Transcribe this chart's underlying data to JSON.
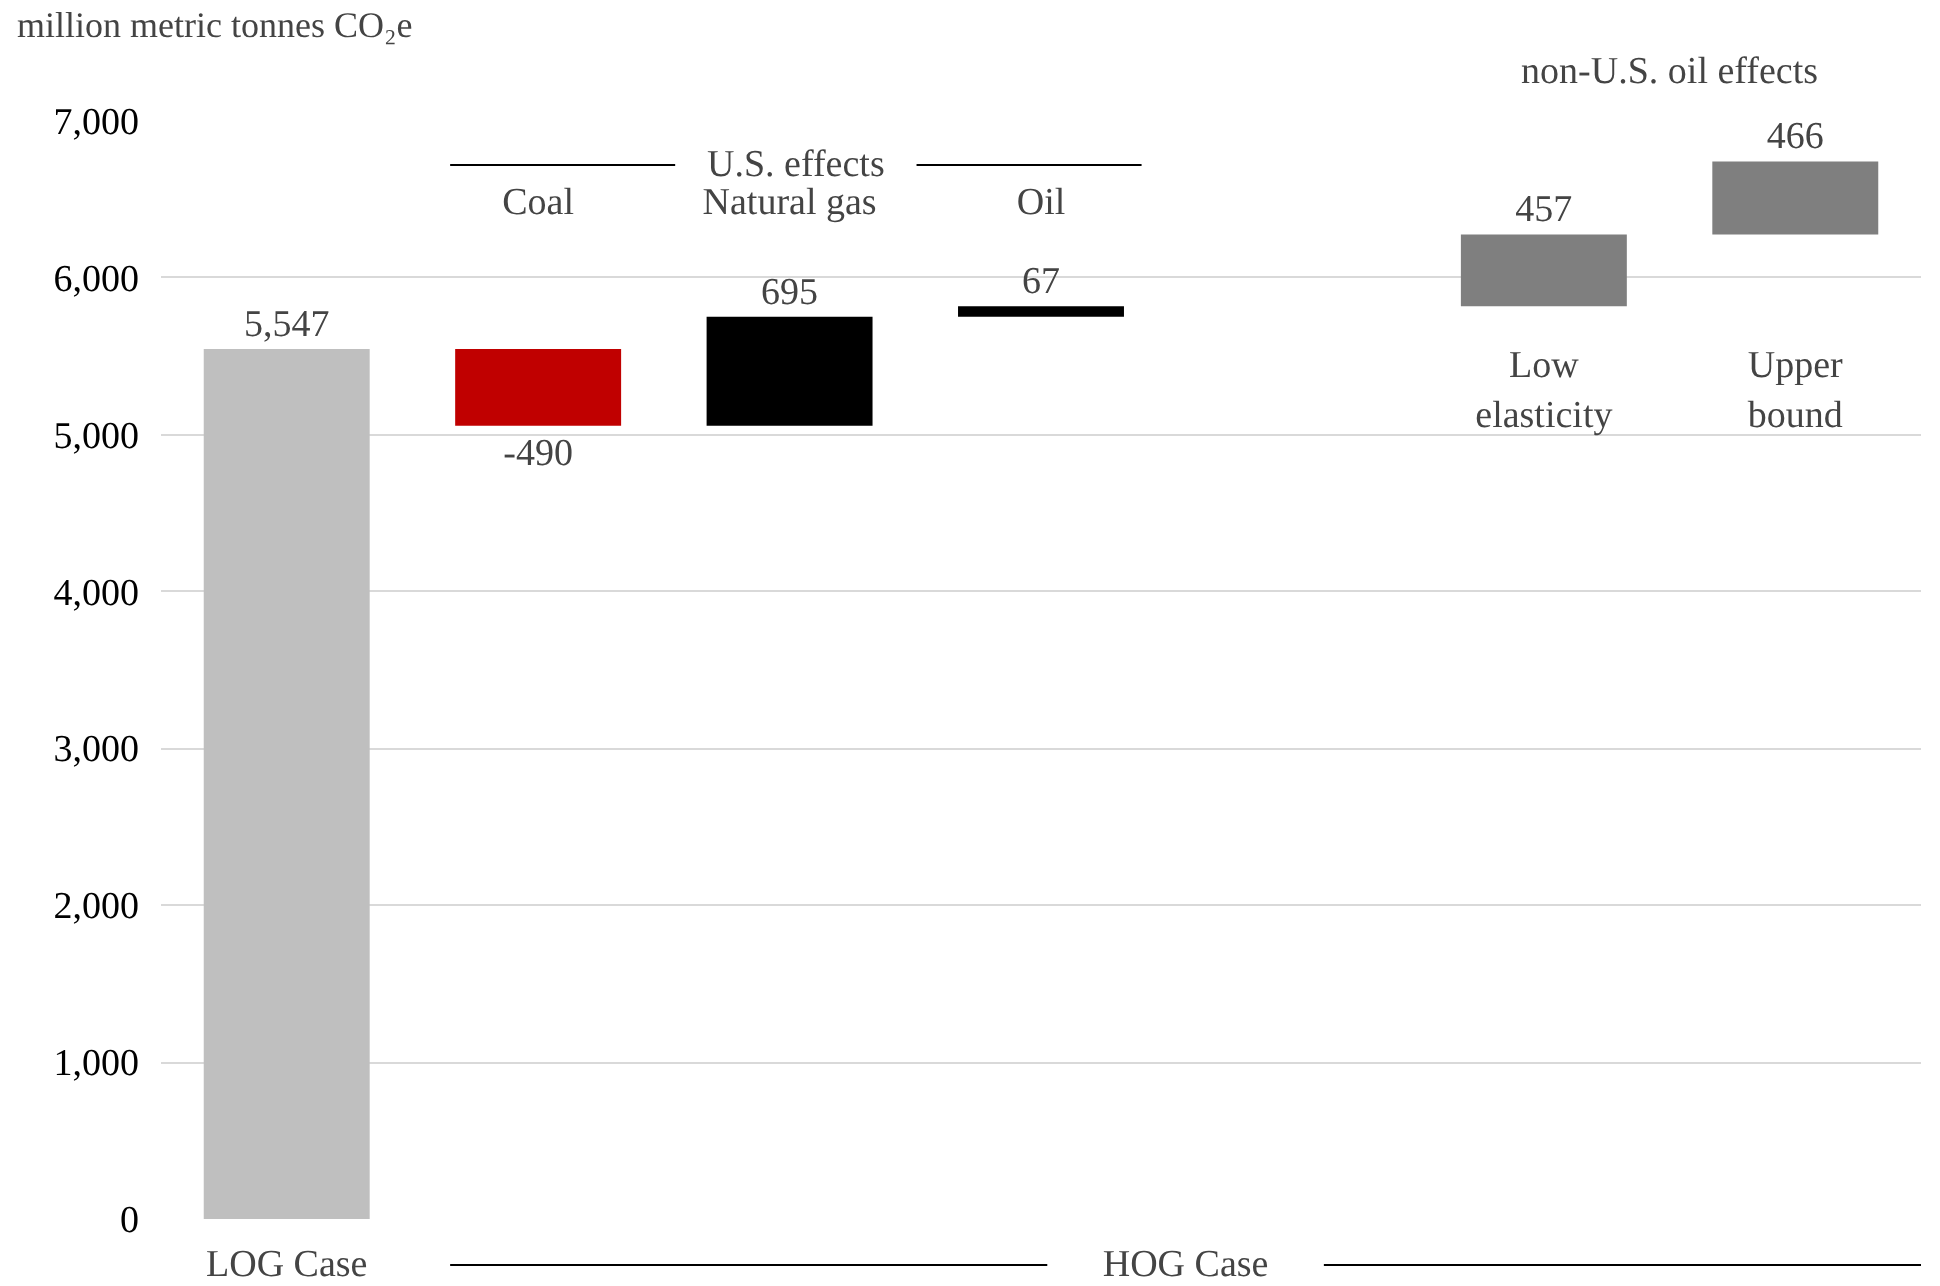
{
  "chart_data": {
    "type": "bar",
    "ylabel": "million metric tonnes CO₂e",
    "categories": [
      "LOG Case",
      "Coal",
      "Natural gas",
      "Oil",
      null,
      "Low elasticity",
      "Upper bound"
    ],
    "values": [
      5547,
      -490,
      695,
      67,
      null,
      457,
      466
    ],
    "base": [
      0,
      5547,
      5057,
      5752,
      null,
      5819,
      6276
    ],
    "value_labels": [
      "5,547",
      "-490",
      "695",
      "67",
      null,
      "457",
      "466"
    ],
    "colors": [
      "#bfbfbf",
      "#c00000",
      "#000000",
      "#000000",
      null,
      "#7f7f7f",
      "#7f7f7f"
    ],
    "ylim": [
      0,
      7000
    ],
    "yticks": [
      0,
      {
        "value": 1000,
        "label": "1,000"
      },
      {
        "value": 2000,
        "label": "2,000"
      },
      {
        "value": 3000,
        "label": "3,000"
      },
      {
        "value": 4000,
        "label": "4,000"
      },
      {
        "value": 5000,
        "label": "5,000"
      },
      {
        "value": 6000,
        "label": "6,000"
      },
      {
        "value": 7000,
        "label": "7,000"
      }
    ],
    "grid": "y",
    "legend": false,
    "annotations": [
      "U.S. effects",
      "non-U.S. oil effects",
      "HOG Case"
    ]
  }
}
